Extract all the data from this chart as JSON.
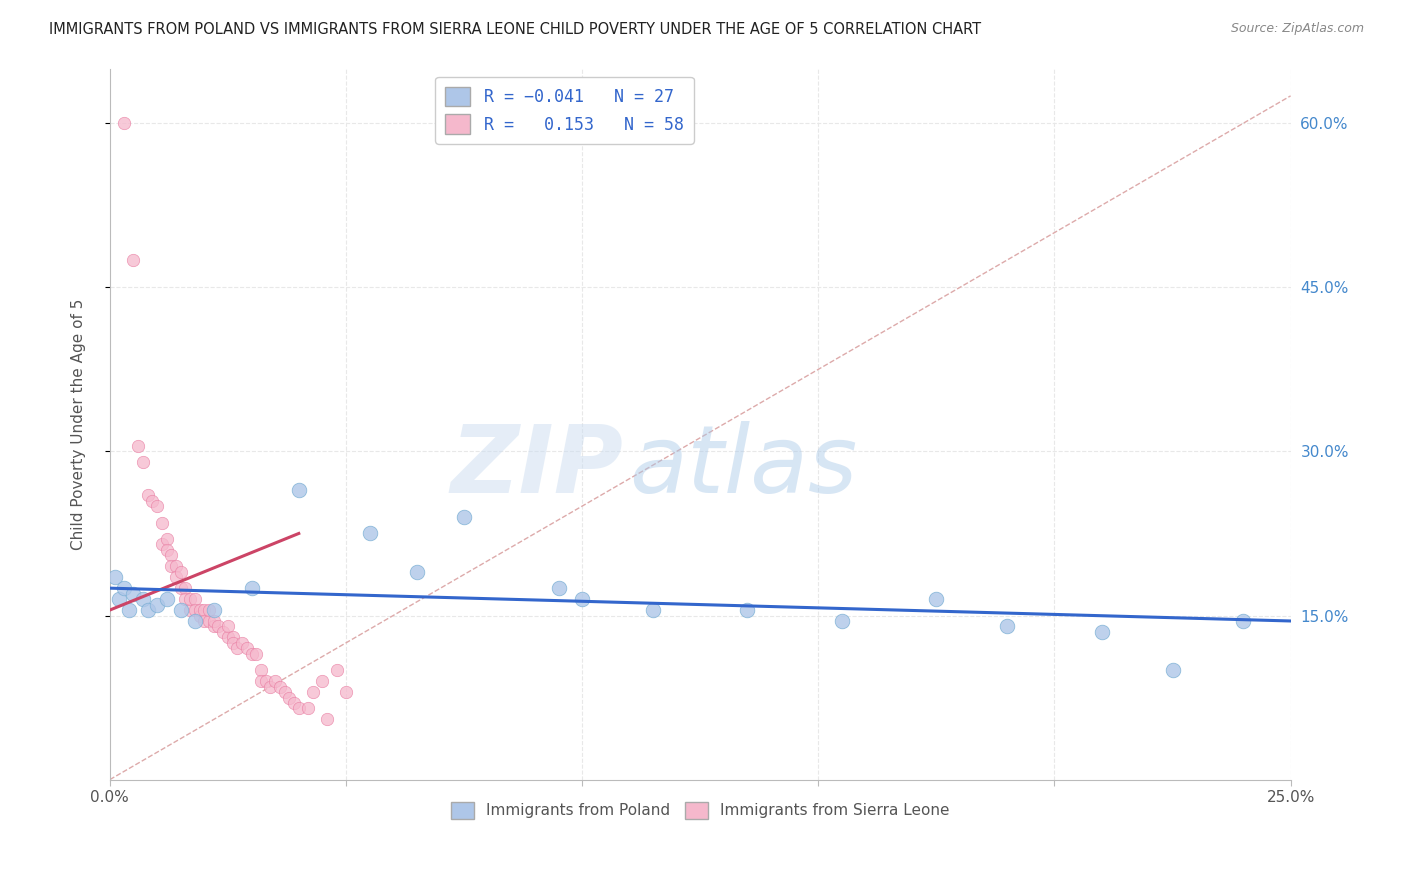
{
  "title": "IMMIGRANTS FROM POLAND VS IMMIGRANTS FROM SIERRA LEONE CHILD POVERTY UNDER THE AGE OF 5 CORRELATION CHART",
  "source": "Source: ZipAtlas.com",
  "ylabel": "Child Poverty Under the Age of 5",
  "xlim": [
    0,
    0.25
  ],
  "ylim": [
    0,
    0.65
  ],
  "xticks": [
    0.0,
    0.05,
    0.1,
    0.15,
    0.2,
    0.25
  ],
  "xticklabels": [
    "0.0%",
    "",
    "",
    "",
    "",
    "25.0%"
  ],
  "yticks": [
    0.15,
    0.3,
    0.45,
    0.6
  ],
  "yticklabels": [
    "15.0%",
    "30.0%",
    "45.0%",
    "60.0%"
  ],
  "poland_x": [
    0.001,
    0.002,
    0.003,
    0.004,
    0.005,
    0.007,
    0.008,
    0.01,
    0.012,
    0.015,
    0.018,
    0.022,
    0.03,
    0.04,
    0.055,
    0.065,
    0.075,
    0.095,
    0.1,
    0.115,
    0.135,
    0.155,
    0.175,
    0.19,
    0.21,
    0.225,
    0.24
  ],
  "poland_y": [
    0.185,
    0.165,
    0.175,
    0.155,
    0.17,
    0.165,
    0.155,
    0.16,
    0.165,
    0.155,
    0.145,
    0.155,
    0.175,
    0.265,
    0.225,
    0.19,
    0.24,
    0.175,
    0.165,
    0.155,
    0.155,
    0.145,
    0.165,
    0.14,
    0.135,
    0.1,
    0.145
  ],
  "sierra_leone_x": [
    0.003,
    0.005,
    0.006,
    0.007,
    0.008,
    0.009,
    0.01,
    0.011,
    0.011,
    0.012,
    0.012,
    0.013,
    0.013,
    0.014,
    0.014,
    0.015,
    0.015,
    0.016,
    0.016,
    0.017,
    0.017,
    0.018,
    0.018,
    0.019,
    0.019,
    0.02,
    0.02,
    0.021,
    0.021,
    0.022,
    0.022,
    0.023,
    0.024,
    0.025,
    0.025,
    0.026,
    0.026,
    0.027,
    0.028,
    0.029,
    0.03,
    0.031,
    0.032,
    0.032,
    0.033,
    0.034,
    0.035,
    0.036,
    0.037,
    0.038,
    0.039,
    0.04,
    0.042,
    0.043,
    0.045,
    0.046,
    0.048,
    0.05
  ],
  "sierra_leone_y": [
    0.6,
    0.475,
    0.305,
    0.29,
    0.26,
    0.255,
    0.25,
    0.235,
    0.215,
    0.22,
    0.21,
    0.205,
    0.195,
    0.195,
    0.185,
    0.19,
    0.175,
    0.175,
    0.165,
    0.155,
    0.165,
    0.165,
    0.155,
    0.15,
    0.155,
    0.155,
    0.145,
    0.145,
    0.155,
    0.14,
    0.145,
    0.14,
    0.135,
    0.13,
    0.14,
    0.13,
    0.125,
    0.12,
    0.125,
    0.12,
    0.115,
    0.115,
    0.1,
    0.09,
    0.09,
    0.085,
    0.09,
    0.085,
    0.08,
    0.075,
    0.07,
    0.065,
    0.065,
    0.08,
    0.09,
    0.055,
    0.1,
    0.08
  ],
  "poland_trend_x": [
    0.0,
    0.25
  ],
  "poland_trend_y": [
    0.175,
    0.145
  ],
  "sierra_leone_trend_x": [
    0.0,
    0.04
  ],
  "sierra_leone_trend_y": [
    0.155,
    0.225
  ],
  "diag_line_x": [
    0.0,
    0.25
  ],
  "diag_line_y": [
    0.0,
    0.625
  ],
  "watermark_zip": "ZIP",
  "watermark_atlas": "atlas",
  "bg_color": "#ffffff",
  "grid_color": "#e8e8e8",
  "scatter_size_poland": 110,
  "scatter_size_sierra": 80,
  "poland_color": "#aec6e8",
  "poland_edge": "#7aafd4",
  "sierra_leone_color": "#f5b8cc",
  "sierra_leone_edge": "#e87aa0",
  "trend_poland_color": "#3366cc",
  "trend_sierra_color": "#cc4466",
  "diag_color": "#ddaaaa",
  "title_color": "#222222",
  "axis_label_color": "#555555",
  "right_tick_color": "#4488cc",
  "legend_text_color": "#3366cc"
}
